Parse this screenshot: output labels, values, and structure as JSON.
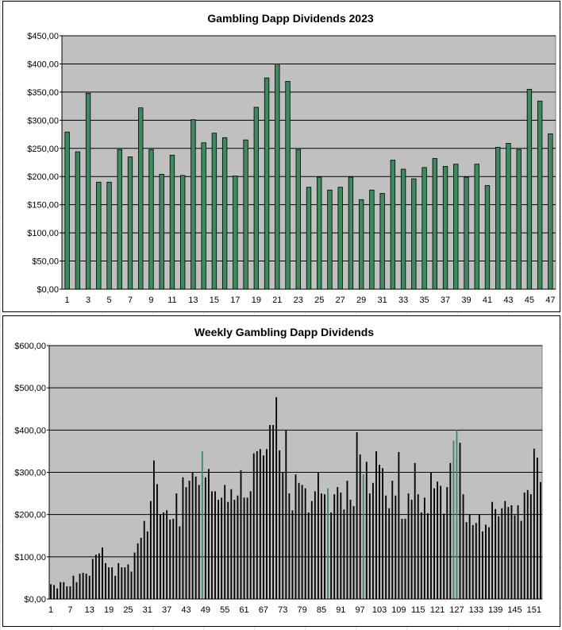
{
  "chart_data": [
    {
      "type": "bar",
      "title": "Gambling Dapp Dividends 2023",
      "xlabel": "",
      "ylabel": "",
      "ylim": [
        0,
        450
      ],
      "y_ticks": [
        "$0,00",
        "$50,00",
        "$100,00",
        "$150,00",
        "$200,00",
        "$250,00",
        "$300,00",
        "$350,00",
        "$400,00",
        "$450,00"
      ],
      "x_tick_labels": [
        "1",
        "3",
        "5",
        "7",
        "9",
        "11",
        "13",
        "15",
        "17",
        "19",
        "21",
        "23",
        "25",
        "27",
        "29",
        "31",
        "33",
        "35",
        "37",
        "39",
        "41",
        "43",
        "45",
        "47"
      ],
      "grid": true,
      "legend": "none",
      "bar_color": "#3c8a5e",
      "plot_background": "#c0c0c0",
      "categories": [
        "1",
        "2",
        "3",
        "4",
        "5",
        "6",
        "7",
        "8",
        "9",
        "10",
        "11",
        "12",
        "13",
        "14",
        "15",
        "16",
        "17",
        "18",
        "19",
        "20",
        "21",
        "22",
        "23",
        "24",
        "25",
        "26",
        "27",
        "28",
        "29",
        "30",
        "31",
        "32",
        "33",
        "34",
        "35",
        "36",
        "37",
        "38",
        "39",
        "40",
        "41",
        "42",
        "43",
        "44",
        "45",
        "46",
        "47"
      ],
      "values": [
        279,
        244,
        348,
        190,
        190,
        248,
        235,
        322,
        248,
        204,
        238,
        202,
        301,
        260,
        277,
        269,
        201,
        265,
        323,
        375,
        400,
        369,
        248,
        181,
        199,
        176,
        181,
        199,
        159,
        176,
        170,
        229,
        213,
        196,
        216,
        232,
        218,
        222,
        199,
        222,
        184,
        252,
        259,
        248,
        355,
        334,
        276
      ]
    },
    {
      "type": "bar",
      "title": "Weekly Gambling Dapp Dividends",
      "xlabel": "",
      "ylabel": "",
      "ylim": [
        0,
        600
      ],
      "y_ticks": [
        "$0,00",
        "$100,00",
        "$200,00",
        "$300,00",
        "$400,00",
        "$500,00",
        "$600,00"
      ],
      "x_tick_labels": [
        "1",
        "7",
        "13",
        "19",
        "25",
        "31",
        "37",
        "43",
        "49",
        "55",
        "61",
        "67",
        "73",
        "79",
        "85",
        "91",
        "97",
        "103",
        "109",
        "115",
        "121",
        "127",
        "133",
        "139",
        "145",
        "151"
      ],
      "grid": true,
      "legend": "none",
      "bar_color": "#000000",
      "plot_background": "#c0c0c0",
      "highlight_color": "#3c8a5e",
      "highlight_indices": [
        47,
        86,
        97,
        125,
        126
      ],
      "values": [
        35,
        33,
        25,
        40,
        40,
        30,
        30,
        55,
        40,
        60,
        62,
        60,
        55,
        95,
        105,
        108,
        122,
        85,
        75,
        75,
        55,
        85,
        75,
        75,
        82,
        65,
        110,
        132,
        145,
        185,
        160,
        232,
        328,
        272,
        200,
        205,
        210,
        188,
        190,
        250,
        172,
        288,
        265,
        280,
        300,
        290,
        270,
        350,
        288,
        308,
        255,
        255,
        235,
        240,
        270,
        230,
        260,
        235,
        245,
        305,
        240,
        240,
        255,
        345,
        350,
        355,
        340,
        355,
        412,
        412,
        478,
        352,
        300,
        400,
        250,
        210,
        295,
        275,
        270,
        262,
        205,
        232,
        255,
        300,
        250,
        248,
        262,
        205,
        248,
        265,
        252,
        212,
        280,
        235,
        220,
        395,
        342,
        295,
        325,
        250,
        275,
        350,
        318,
        310,
        245,
        215,
        280,
        245,
        348,
        190,
        190,
        250,
        235,
        322,
        248,
        205,
        240,
        203,
        300,
        262,
        278,
        268,
        202,
        265,
        322,
        375,
        400,
        370,
        248,
        182,
        200,
        175,
        180,
        200,
        160,
        176,
        170,
        230,
        213,
        196,
        215,
        232,
        218,
        222,
        198,
        222,
        185,
        252,
        258,
        248,
        356,
        335,
        277
      ]
    }
  ]
}
